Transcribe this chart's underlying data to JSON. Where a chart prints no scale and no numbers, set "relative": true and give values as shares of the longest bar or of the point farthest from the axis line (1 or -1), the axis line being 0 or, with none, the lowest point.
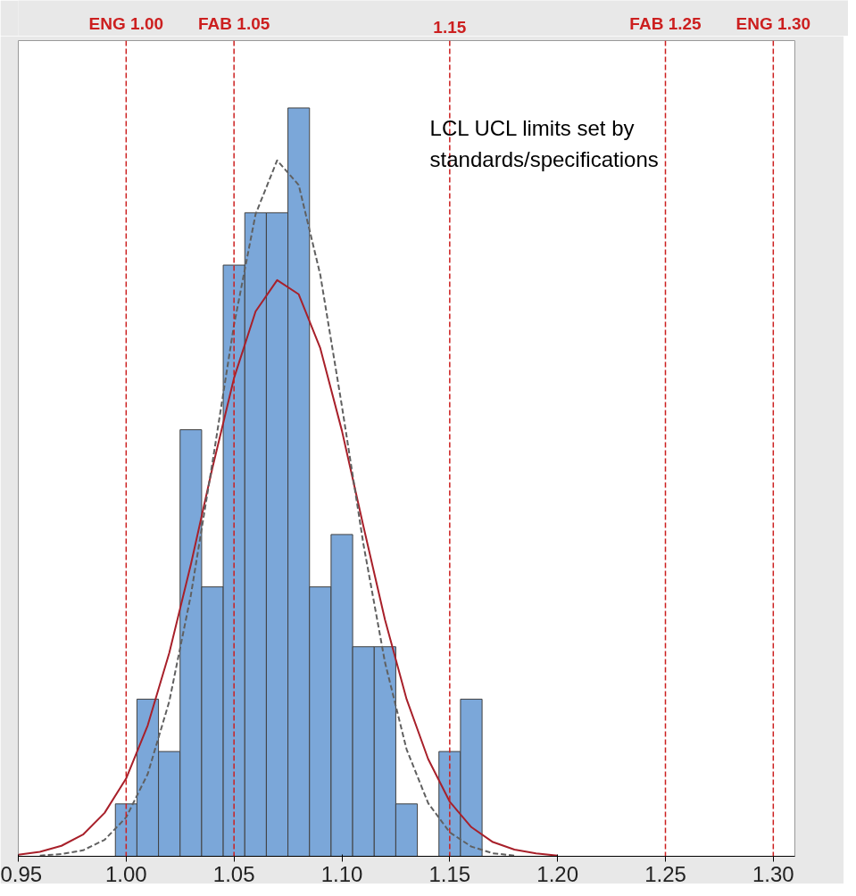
{
  "chart_data": {
    "type": "histogram",
    "relative": true,
    "bins": [
      0.995,
      1.005,
      1.015,
      1.025,
      1.035,
      1.045,
      1.055,
      1.065,
      1.075,
      1.085,
      1.095,
      1.105,
      1.115,
      1.125,
      1.135,
      1.145,
      1.155,
      1.165
    ],
    "values": [
      0.07,
      0.21,
      0.14,
      0.57,
      0.36,
      0.79,
      0.86,
      0.86,
      1.0,
      0.36,
      0.43,
      0.28,
      0.28,
      0.07,
      0,
      0.14,
      0.21
    ],
    "color": "#7ba7d9",
    "series": [
      {
        "type": "line",
        "color": "#a8202a",
        "line_style": "solid",
        "x": [
          0.95,
          0.96,
          0.97,
          0.98,
          0.99,
          1.0,
          1.01,
          1.02,
          1.03,
          1.04,
          1.05,
          1.06,
          1.07,
          1.08,
          1.09,
          1.1,
          1.11,
          1.12,
          1.13,
          1.14,
          1.15,
          1.16,
          1.17,
          1.18,
          1.19,
          1.2
        ],
        "values": [
          0.002,
          0.006,
          0.014,
          0.029,
          0.058,
          0.104,
          0.175,
          0.272,
          0.39,
          0.519,
          0.639,
          0.728,
          0.77,
          0.751,
          0.679,
          0.569,
          0.441,
          0.316,
          0.21,
          0.13,
          0.073,
          0.039,
          0.019,
          0.009,
          0.004,
          0.001
        ]
      },
      {
        "type": "line",
        "color": "#606060",
        "line_style": "dashed",
        "x": [
          0.96,
          0.97,
          0.98,
          0.99,
          1.0,
          1.01,
          1.02,
          1.03,
          1.04,
          1.05,
          1.06,
          1.07,
          1.08,
          1.09,
          1.1,
          1.11,
          1.12,
          1.13,
          1.14,
          1.15,
          1.16,
          1.17,
          1.18
        ],
        "values": [
          0.001,
          0.003,
          0.008,
          0.022,
          0.052,
          0.11,
          0.207,
          0.349,
          0.526,
          0.71,
          0.858,
          0.93,
          0.897,
          0.777,
          0.602,
          0.417,
          0.259,
          0.143,
          0.071,
          0.032,
          0.013,
          0.004,
          0.001
        ]
      }
    ],
    "xlim": [
      0.95,
      1.31
    ],
    "xticks": [
      0.95,
      {
        "value": 1.0,
        "label": "1.00"
      },
      1.05,
      {
        "value": 1.1,
        "label": "1.10"
      },
      1.15,
      {
        "value": 1.2,
        "label": "1.20"
      },
      1.25,
      {
        "value": 1.3,
        "label": "1.30"
      }
    ],
    "ref_lines": [
      {
        "axis": "x",
        "value": 1.0,
        "label": "ENG 1.00",
        "color": "#cc1f1f",
        "line_style": "dashed"
      },
      {
        "axis": "x",
        "value": 1.05,
        "label": "FAB 1.05",
        "color": "#cc1f1f",
        "line_style": "dashed"
      },
      {
        "axis": "x",
        "value": 1.15,
        "label": "1.15",
        "color": "#cc1f1f",
        "line_style": "dashed"
      },
      {
        "axis": "x",
        "value": 1.25,
        "label": "FAB 1.25",
        "color": "#cc1f1f",
        "line_style": "dashed"
      },
      {
        "axis": "x",
        "value": 1.3,
        "label": "ENG 1.30",
        "color": "#cc1f1f",
        "line_style": "dashed"
      }
    ],
    "annotations": [
      "LCL UCL limits set by\nstandards/specifications"
    ],
    "grid": false,
    "tick_labels": "x"
  }
}
